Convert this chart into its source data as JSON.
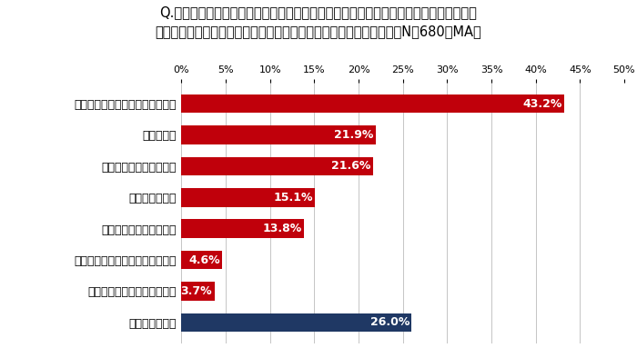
{
  "title_line1": "Q.あなたが、ソーシャルプロダクツ（人や地球、地域社会に配慮がある商品）を購入し",
  "title_line2": "ていない理由、あるいはそれらに現在感じている不満は何ですか？（N＝680、MA）",
  "categories": [
    "どれが該当商品なのか分からない",
    "価格が高い",
    "身近に買える場所がない",
    "種類が限られる",
    "活動の透明性が足りない",
    "デザインが十分に洗練されてない",
    "商品の品質が十分に高くない",
    "特に不満はない"
  ],
  "values": [
    43.2,
    21.9,
    21.6,
    15.1,
    13.8,
    4.6,
    3.7,
    26.0
  ],
  "bar_colors": [
    "#c0000b",
    "#c0000b",
    "#c0000b",
    "#c0000b",
    "#c0000b",
    "#c0000b",
    "#c0000b",
    "#1f3864"
  ],
  "label_colors": [
    "white",
    "white",
    "white",
    "white",
    "white",
    "white",
    "white",
    "white"
  ],
  "xlim": [
    0,
    50
  ],
  "xticks": [
    0,
    5,
    10,
    15,
    20,
    25,
    30,
    35,
    40,
    45,
    50
  ],
  "background_color": "#ffffff",
  "grid_color": "#bbbbbb",
  "title_fontsize": 10.5,
  "bar_label_fontsize": 9.0,
  "category_fontsize": 9.0,
  "tick_fontsize": 8.0
}
